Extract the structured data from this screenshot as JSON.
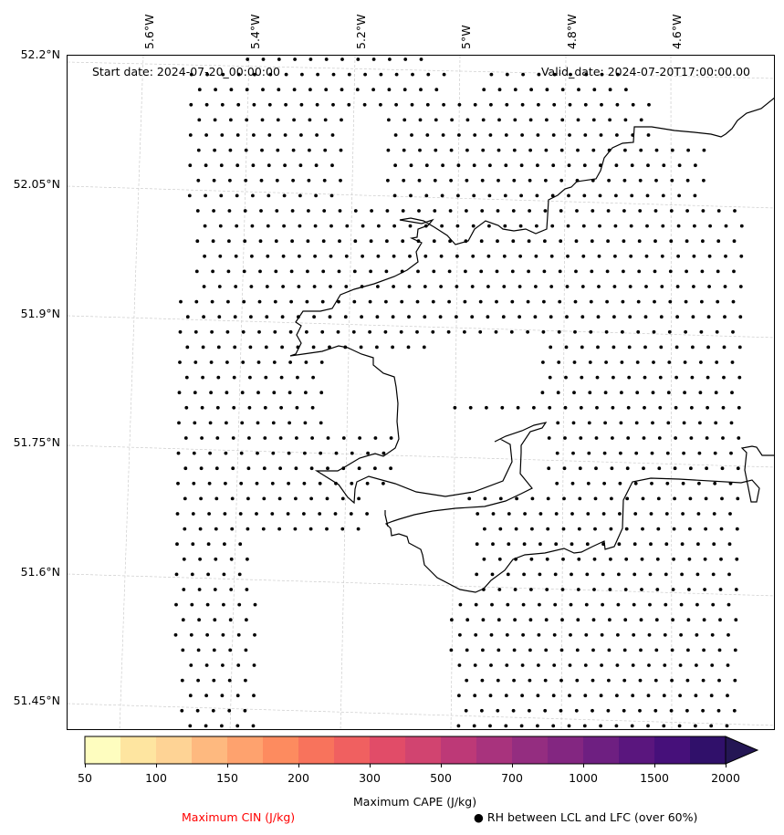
{
  "map": {
    "start_text": "Start date: 2024-07-20_00:00:00",
    "valid_text": "Valid_date: 2024-07-20T17:00:00.00",
    "lat_labels": [
      "52.2°N",
      "52.05°N",
      "51.9°N",
      "51.75°N",
      "51.6°N",
      "51.45°N"
    ],
    "lon_labels": [
      "5.6°W",
      "5.4°W",
      "5.2°W",
      "5°W",
      "4.8°W",
      "4.6°W"
    ],
    "coastline_color": "#000000",
    "gridline_color": "#cccccc",
    "dot_color": "#000000"
  },
  "colorbar": {
    "title": "Maximum CAPE (J/kg)",
    "tick_labels": [
      "50",
      "100",
      "150",
      "200",
      "300",
      "500",
      "700",
      "1000",
      "1500",
      "2000"
    ],
    "extend": "max",
    "colors": [
      "#fefdbf",
      "#fee5a0",
      "#fed395",
      "#feb97f",
      "#fea26e",
      "#fd8b5f",
      "#f8735c",
      "#f06060",
      "#e14c68",
      "#d14470",
      "#bd3977",
      "#a8337d",
      "#942d80",
      "#832681",
      "#6e1f81",
      "#5a167e",
      "#46107a",
      "#30106a",
      "#241654"
    ]
  },
  "legend": {
    "cin_label": "Maximum CIN (J/kg)",
    "cin_color": "#ff0000",
    "rh_marker": "●",
    "rh_label": "RH between LCL and LFC (over 60%)"
  }
}
